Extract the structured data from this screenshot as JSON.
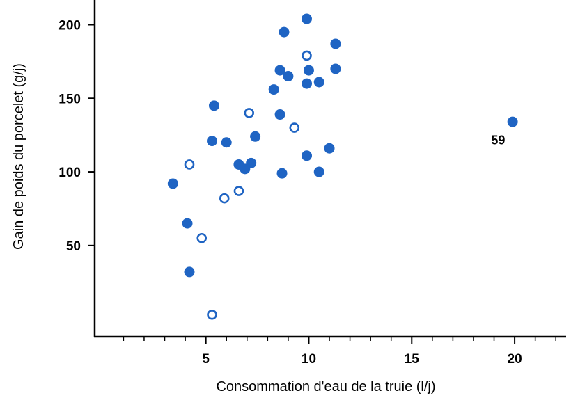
{
  "chart_data": {
    "type": "scatter",
    "title": "",
    "xlabel": "Consommation d'eau de la truie (l/j)",
    "ylabel": "Gain de poids du porcelet (g/j)",
    "xlim": [
      -0.4,
      22.5
    ],
    "ylim": [
      -12,
      213
    ],
    "x_ticks": [
      5,
      10,
      15,
      20
    ],
    "x_minor_ticks": [
      1,
      2,
      3,
      4,
      6,
      7,
      8,
      9,
      11,
      12,
      13,
      14,
      16,
      17,
      18,
      19,
      21,
      22
    ],
    "y_ticks": [
      50,
      100,
      150,
      200
    ],
    "grid": false,
    "legend": "none",
    "colors": {
      "marker": "#1f64c3",
      "axis": "#000000"
    },
    "series": [
      {
        "style": "filled",
        "points": [
          [
            8.8,
            195
          ],
          [
            9.9,
            204
          ],
          [
            11.3,
            187
          ],
          [
            11.3,
            170
          ],
          [
            8.6,
            169
          ],
          [
            9.0,
            165
          ],
          [
            10.0,
            169
          ],
          [
            9.9,
            160
          ],
          [
            10.5,
            161
          ],
          [
            8.3,
            156
          ],
          [
            5.4,
            145
          ],
          [
            8.6,
            139
          ],
          [
            7.4,
            124
          ],
          [
            5.3,
            121
          ],
          [
            6.0,
            120
          ],
          [
            11.0,
            116
          ],
          [
            9.9,
            111
          ],
          [
            6.6,
            105
          ],
          [
            7.2,
            106
          ],
          [
            6.9,
            102
          ],
          [
            8.7,
            99
          ],
          [
            10.5,
            100
          ],
          [
            3.4,
            92
          ],
          [
            4.1,
            65
          ],
          [
            4.2,
            32
          ],
          [
            19.9,
            134
          ]
        ]
      },
      {
        "style": "open",
        "points": [
          [
            9.9,
            179
          ],
          [
            7.1,
            140
          ],
          [
            9.3,
            130
          ],
          [
            4.2,
            105
          ],
          [
            6.6,
            87
          ],
          [
            5.9,
            82
          ],
          [
            4.8,
            55
          ],
          [
            5.3,
            3
          ]
        ]
      }
    ],
    "annotations": [
      {
        "text": "59",
        "x": 19.2,
        "y": 122
      }
    ]
  }
}
